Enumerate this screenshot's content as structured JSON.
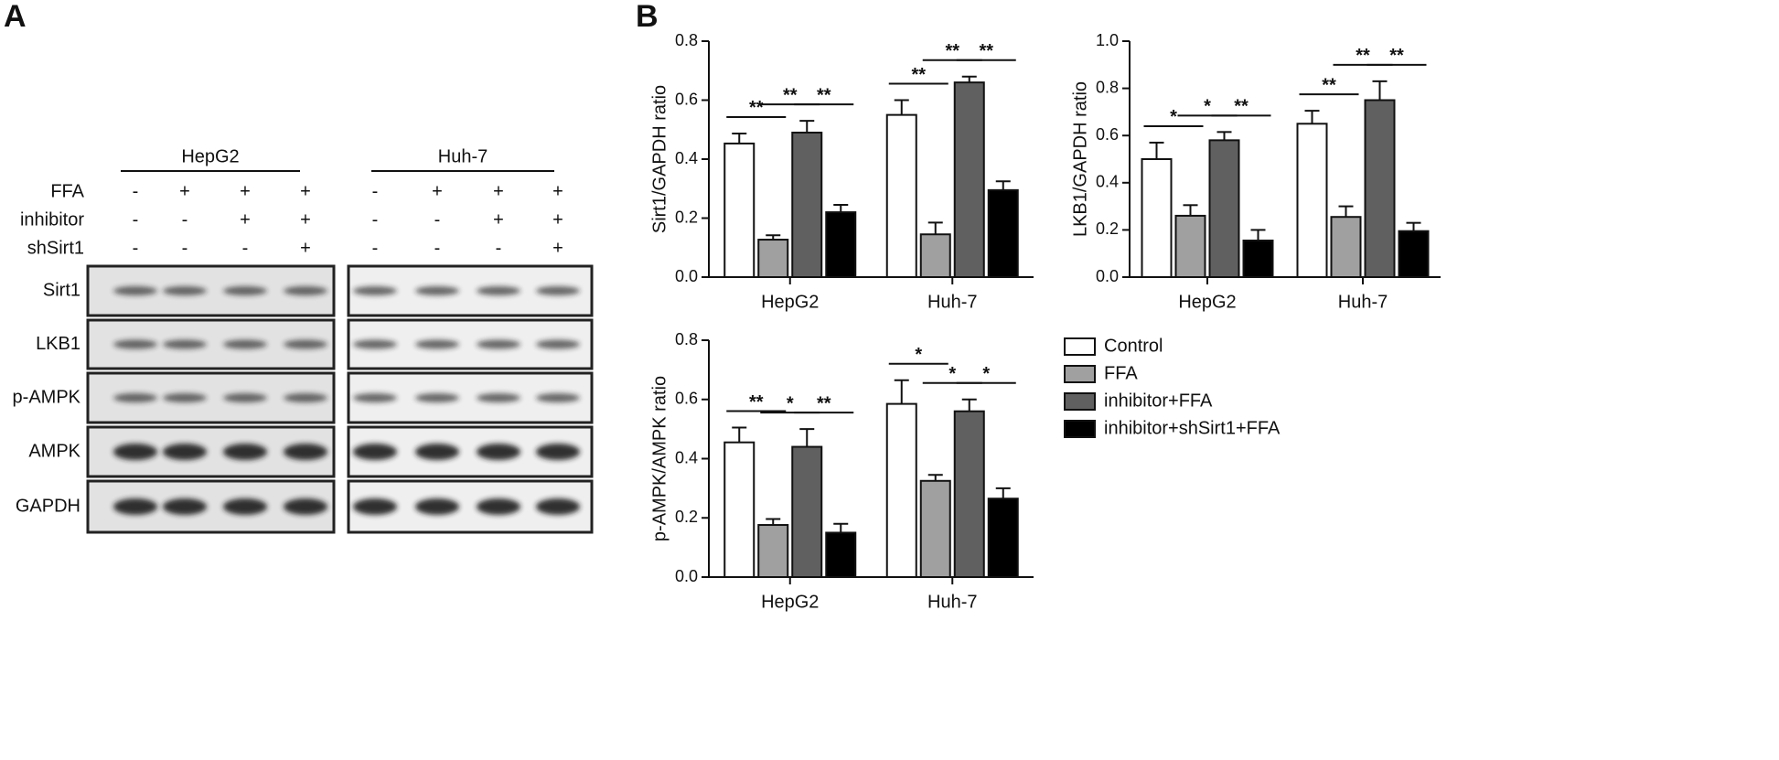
{
  "panel_labels": [
    "A",
    "B"
  ],
  "blot": {
    "groups": [
      "HepG2",
      "Huh-7"
    ],
    "conditions": [
      {
        "name": "FFA",
        "signs": [
          "-",
          "+",
          "+",
          "+",
          "-",
          "+",
          "+",
          "+"
        ]
      },
      {
        "name": "inhibitor",
        "signs": [
          "-",
          "-",
          "+",
          "+",
          "-",
          "-",
          "+",
          "+"
        ]
      },
      {
        "name": "shSirt1",
        "signs": [
          "-",
          "-",
          "-",
          "+",
          "-",
          "-",
          "-",
          "+"
        ]
      }
    ],
    "proteins": [
      "Sirt1",
      "LKB1",
      "p-AMPK",
      "AMPK",
      "GAPDH"
    ]
  },
  "legend": [
    {
      "name": "Control",
      "color": "#ffffff"
    },
    {
      "name": "FFA",
      "color": "#a0a0a0"
    },
    {
      "name": "inhibitor+FFA",
      "color": "#606060"
    },
    {
      "name": "inhibitor+shSirt1+FFA",
      "color": "#000000"
    }
  ],
  "chart_data": [
    {
      "type": "bar",
      "ylabel": "Sirt1/GAPDH ratio",
      "categories": [
        "HepG2",
        "Huh-7"
      ],
      "ylim": [
        0,
        0.8
      ],
      "yticks": [
        {
          "value": 0,
          "label": "0.0"
        },
        0.2,
        0.4,
        0.6,
        0.8
      ],
      "series": [
        {
          "values": [
            0.453,
            0.55
          ],
          "errors": [
            0.034,
            0.05
          ]
        },
        {
          "values": [
            0.127,
            0.145
          ],
          "errors": [
            0.015,
            0.04
          ]
        },
        {
          "values": [
            0.49,
            0.66
          ],
          "errors": [
            0.04,
            0.02
          ]
        },
        {
          "values": [
            0.22,
            0.295
          ],
          "errors": [
            0.025,
            0.03
          ]
        }
      ],
      "annotations": [
        [
          "**",
          "**",
          "**"
        ],
        [
          "**",
          "**",
          "**"
        ]
      ]
    },
    {
      "type": "bar",
      "ylabel": "LKB1/GAPDH ratio",
      "categories": [
        "HepG2",
        "Huh-7"
      ],
      "ylim": [
        0,
        1.0
      ],
      "yticks": [
        {
          "value": 0,
          "label": "0.0"
        },
        0.2,
        0.4,
        0.6,
        0.8,
        {
          "value": 1.0,
          "label": "1.0"
        }
      ],
      "series": [
        {
          "values": [
            0.5,
            0.65
          ],
          "errors": [
            0.07,
            0.055
          ]
        },
        {
          "values": [
            0.26,
            0.255
          ],
          "errors": [
            0.045,
            0.045
          ]
        },
        {
          "values": [
            0.58,
            0.75
          ],
          "errors": [
            0.035,
            0.08
          ]
        },
        {
          "values": [
            0.155,
            0.195
          ],
          "errors": [
            0.045,
            0.035
          ]
        }
      ],
      "annotations": [
        [
          "*",
          "*",
          "**"
        ],
        [
          "**",
          "**",
          "**"
        ]
      ]
    },
    {
      "type": "bar",
      "ylabel": "p-AMPK/AMPK ratio",
      "categories": [
        "HepG2",
        "Huh-7"
      ],
      "ylim": [
        0,
        0.8
      ],
      "yticks": [
        {
          "value": 0,
          "label": "0.0"
        },
        0.2,
        0.4,
        0.6,
        0.8
      ],
      "series": [
        {
          "values": [
            0.455,
            0.585
          ],
          "errors": [
            0.05,
            0.08
          ]
        },
        {
          "values": [
            0.176,
            0.325
          ],
          "errors": [
            0.02,
            0.02
          ]
        },
        {
          "values": [
            0.44,
            0.56
          ],
          "errors": [
            0.06,
            0.04
          ]
        },
        {
          "values": [
            0.15,
            0.265
          ],
          "errors": [
            0.03,
            0.035
          ]
        }
      ],
      "annotations": [
        [
          "**",
          "*",
          "**"
        ],
        [
          "*",
          "*",
          "*"
        ]
      ]
    }
  ]
}
